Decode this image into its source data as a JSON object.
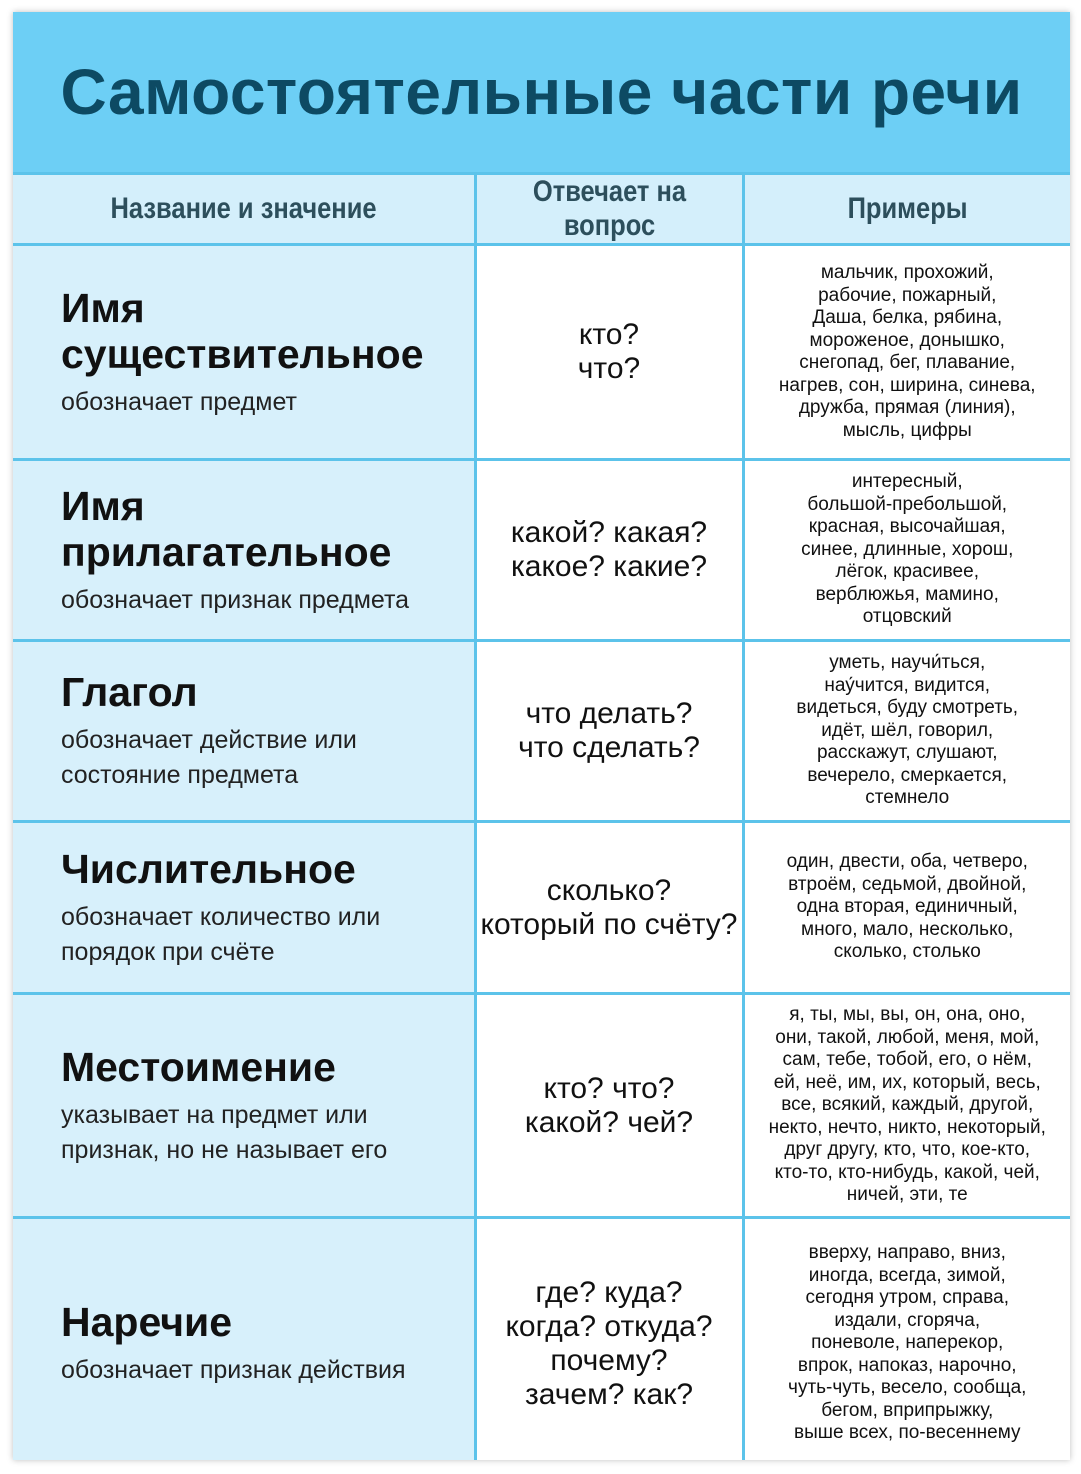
{
  "title": "Самостоятельные части речи",
  "headers": [
    "Название и значение",
    "Отвечает на вопрос",
    "Примеры"
  ],
  "rows": [
    {
      "name": [
        "Имя",
        "существительное"
      ],
      "meaning": [
        "обозначает предмет"
      ],
      "questions": [
        "кто?",
        "что?"
      ],
      "examples": [
        "мальчик, прохожий,",
        "рабочие, пожарный,",
        "Даша, белка, рябина,",
        "мороженое, донышко,",
        "снегопад, бег, плавание,",
        "нагрев, сон, ширина, синева,",
        "дружба, прямая (линия),",
        "мысль, цифры"
      ]
    },
    {
      "name": [
        "Имя",
        "прилагательное"
      ],
      "meaning": [
        "обозначает признак предмета"
      ],
      "questions": [
        "какой? какая?",
        "какое? какие?"
      ],
      "examples": [
        "интересный,",
        "большой-пребольшой,",
        "красная, высочайшая,",
        "синее, длинные, хорош,",
        "лёгок, красивее,",
        "верблюжья, мамино,",
        "отцовский"
      ]
    },
    {
      "name": [
        "Глагол"
      ],
      "meaning": [
        "обозначает действие или",
        "состояние предмета"
      ],
      "questions": [
        "что делать?",
        "что сделать?"
      ],
      "examples": [
        "уметь, научи́ться,",
        "нау́чится, видится,",
        "видеться, буду смотреть,",
        "идёт, шёл, говорил,",
        "расскажут, слушают,",
        "вечерело, смеркается,",
        "стемнело"
      ]
    },
    {
      "name": [
        "Числительное"
      ],
      "meaning": [
        "обозначает количество или",
        "порядок при счёте"
      ],
      "questions": [
        "сколько?",
        "который по счёту?"
      ],
      "examples": [
        "один, двести, оба, четверо,",
        "втроём, седьмой, двойной,",
        "одна вторая, единичный,",
        "много, мало, несколько,",
        "сколько, столько"
      ]
    },
    {
      "name": [
        "Местоимение"
      ],
      "meaning": [
        "указывает на предмет или",
        "признак, но не называет его"
      ],
      "questions": [
        "кто? что?",
        "какой? чей?"
      ],
      "examples": [
        "я, ты, мы, вы, он, она, оно,",
        "они, такой, любой, меня, мой,",
        "сам, тебе, тобой, его, о нём,",
        "ей, неё, им, их, который, весь,",
        "все, всякий, каждый, другой,",
        "некто, нечто, никто, некоторый,",
        "друг другу, кто, что, кое-кто,",
        "кто-то, кто-нибудь, какой, чей,",
        "ничей, эти, те"
      ]
    },
    {
      "name": [
        "Наречие"
      ],
      "meaning": [
        "обозначает признак действия"
      ],
      "questions": [
        "где? куда?",
        "когда? откуда?",
        "почему?",
        "зачем? как?"
      ],
      "examples": [
        "вверху, направо, вниз,",
        "иногда, всегда, зимой,",
        "сегодня утром, справа,",
        "издали, сгоряча,",
        "поневоле, наперекор,",
        "впрок, напоказ, нарочно,",
        "чуть-чуть, весело, сообща,",
        "бегом, вприпрыжку,",
        "выше всех, по-весеннему"
      ]
    }
  ],
  "colors": {
    "title_band": "#6dcff5",
    "title_text": "#0d4a63",
    "header_bg": "#d4effb",
    "grid": "#5cc3ea",
    "name_col_bg": "#d7f0fb"
  }
}
